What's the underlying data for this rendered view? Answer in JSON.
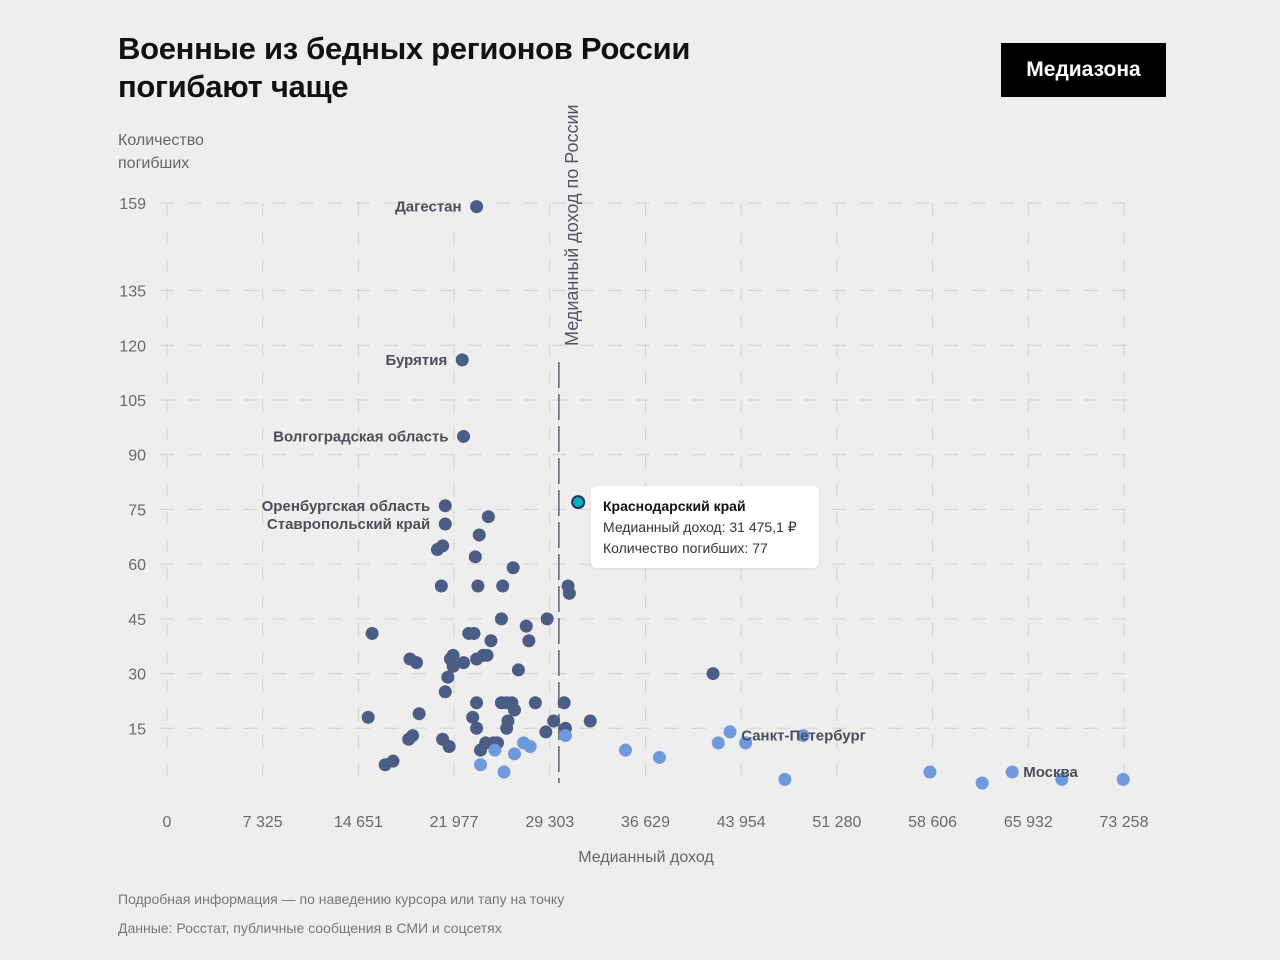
{
  "header": {
    "title": "Военные из бедных регионов России\nпогибают чаще",
    "logo": "Медиазона"
  },
  "chart_data": {
    "type": "scatter",
    "title": "Военные из бедных регионов России погибают чаще",
    "xlabel": "Медианный доход",
    "ylabel": "Количество\nпогибших",
    "xlim": [
      0,
      73258
    ],
    "ylim": [
      0,
      159
    ],
    "x_ticks": [
      0,
      7325,
      14651,
      21977,
      29303,
      36629,
      43954,
      51280,
      58606,
      65932,
      73258
    ],
    "x_tick_labels": [
      "0",
      "7 325",
      "14 651",
      "21 977",
      "29 303",
      "36 629",
      "43 954",
      "51 280",
      "58 606",
      "65 932",
      "73 258"
    ],
    "y_ticks": [
      15,
      30,
      45,
      60,
      75,
      90,
      105,
      120,
      135,
      159
    ],
    "y_tick_labels": [
      "15",
      "30",
      "45",
      "60",
      "75",
      "90",
      "105",
      "120",
      "135",
      "159"
    ],
    "grid": true,
    "reference_line": {
      "x": 30000,
      "label": "Медианный доход по России"
    },
    "colors": {
      "poor": "#4b5d85",
      "rich": "#6f99dc",
      "highlight": "#00b0c6"
    },
    "labeled_points": [
      {
        "label": "Дагестан",
        "x": 23700,
        "y": 158
      },
      {
        "label": "Бурятия",
        "x": 22600,
        "y": 116
      },
      {
        "label": "Волгоградская область",
        "x": 22700,
        "y": 95
      },
      {
        "label": "Оренбургская область",
        "x": 21300,
        "y": 76
      },
      {
        "label": "Ставропольский край",
        "x": 21300,
        "y": 71
      },
      {
        "label": "Санкт-Петербург",
        "x": 48700,
        "y": 13
      },
      {
        "label": "Москва",
        "x": 64700,
        "y": 3
      }
    ],
    "highlight": {
      "name": "Краснодарский край",
      "x": 31475.1,
      "y": 77
    },
    "points": [
      {
        "x": 23700,
        "y": 158
      },
      {
        "x": 22600,
        "y": 116
      },
      {
        "x": 22700,
        "y": 95
      },
      {
        "x": 21300,
        "y": 76
      },
      {
        "x": 21300,
        "y": 71
      },
      {
        "x": 24600,
        "y": 73
      },
      {
        "x": 23900,
        "y": 68
      },
      {
        "x": 20700,
        "y": 64
      },
      {
        "x": 21100,
        "y": 65
      },
      {
        "x": 23600,
        "y": 62
      },
      {
        "x": 26500,
        "y": 59
      },
      {
        "x": 21000,
        "y": 54
      },
      {
        "x": 23800,
        "y": 54
      },
      {
        "x": 25700,
        "y": 54
      },
      {
        "x": 30700,
        "y": 54
      },
      {
        "x": 30800,
        "y": 52
      },
      {
        "x": 25600,
        "y": 45
      },
      {
        "x": 29100,
        "y": 45
      },
      {
        "x": 27500,
        "y": 43
      },
      {
        "x": 15700,
        "y": 41
      },
      {
        "x": 23100,
        "y": 41
      },
      {
        "x": 23500,
        "y": 41
      },
      {
        "x": 24800,
        "y": 39
      },
      {
        "x": 27700,
        "y": 39
      },
      {
        "x": 21900,
        "y": 35
      },
      {
        "x": 24200,
        "y": 35
      },
      {
        "x": 24500,
        "y": 35
      },
      {
        "x": 18600,
        "y": 34
      },
      {
        "x": 19100,
        "y": 33
      },
      {
        "x": 21700,
        "y": 34
      },
      {
        "x": 23700,
        "y": 34
      },
      {
        "x": 21900,
        "y": 32
      },
      {
        "x": 22700,
        "y": 33
      },
      {
        "x": 26900,
        "y": 31
      },
      {
        "x": 21500,
        "y": 29
      },
      {
        "x": 21300,
        "y": 25
      },
      {
        "x": 41800,
        "y": 30
      },
      {
        "x": 23700,
        "y": 22
      },
      {
        "x": 25600,
        "y": 22
      },
      {
        "x": 26000,
        "y": 22
      },
      {
        "x": 26400,
        "y": 22
      },
      {
        "x": 28200,
        "y": 22
      },
      {
        "x": 30400,
        "y": 22
      },
      {
        "x": 15400,
        "y": 18
      },
      {
        "x": 19300,
        "y": 19
      },
      {
        "x": 23400,
        "y": 18
      },
      {
        "x": 26600,
        "y": 20
      },
      {
        "x": 26100,
        "y": 17
      },
      {
        "x": 29600,
        "y": 17
      },
      {
        "x": 32400,
        "y": 17
      },
      {
        "x": 23700,
        "y": 15
      },
      {
        "x": 26000,
        "y": 15
      },
      {
        "x": 30500,
        "y": 15
      },
      {
        "x": 18800,
        "y": 13
      },
      {
        "x": 29000,
        "y": 14
      },
      {
        "x": 18500,
        "y": 12
      },
      {
        "x": 21100,
        "y": 12
      },
      {
        "x": 24400,
        "y": 11
      },
      {
        "x": 25000,
        "y": 11
      },
      {
        "x": 25300,
        "y": 11
      },
      {
        "x": 21600,
        "y": 10
      },
      {
        "x": 24000,
        "y": 9
      },
      {
        "x": 16700,
        "y": 5
      },
      {
        "x": 17300,
        "y": 6
      },
      {
        "x": 30500,
        "y": 13,
        "group": "rich"
      },
      {
        "x": 27300,
        "y": 11,
        "group": "rich"
      },
      {
        "x": 27800,
        "y": 10,
        "group": "rich"
      },
      {
        "x": 25100,
        "y": 9,
        "group": "rich"
      },
      {
        "x": 26600,
        "y": 8,
        "group": "rich"
      },
      {
        "x": 35100,
        "y": 9,
        "group": "rich"
      },
      {
        "x": 37700,
        "y": 7,
        "group": "rich"
      },
      {
        "x": 24000,
        "y": 5,
        "group": "rich"
      },
      {
        "x": 25800,
        "y": 3,
        "group": "rich"
      },
      {
        "x": 43100,
        "y": 14,
        "group": "rich"
      },
      {
        "x": 42200,
        "y": 11,
        "group": "rich"
      },
      {
        "x": 44300,
        "y": 11,
        "group": "rich"
      },
      {
        "x": 48700,
        "y": 13,
        "group": "rich"
      },
      {
        "x": 47300,
        "y": 1,
        "group": "rich"
      },
      {
        "x": 58400,
        "y": 3,
        "group": "rich"
      },
      {
        "x": 62400,
        "y": 0,
        "group": "rich"
      },
      {
        "x": 64700,
        "y": 3,
        "group": "rich"
      },
      {
        "x": 68500,
        "y": 1,
        "group": "rich"
      },
      {
        "x": 73200,
        "y": 1,
        "group": "rich"
      },
      {
        "x": 31475.1,
        "y": 77,
        "group": "highlight"
      }
    ]
  },
  "tooltip": {
    "name": "Краснодарский край",
    "income_line": "Медианный доход: 31 475,1 ₽",
    "deaths_line": "Количество погибших: 77"
  },
  "footer": {
    "note": "Подробная информация — по наведению курсора или тапу на точку",
    "source": "Данные: Росстат, публичные сообщения в СМИ и соцсетях"
  }
}
